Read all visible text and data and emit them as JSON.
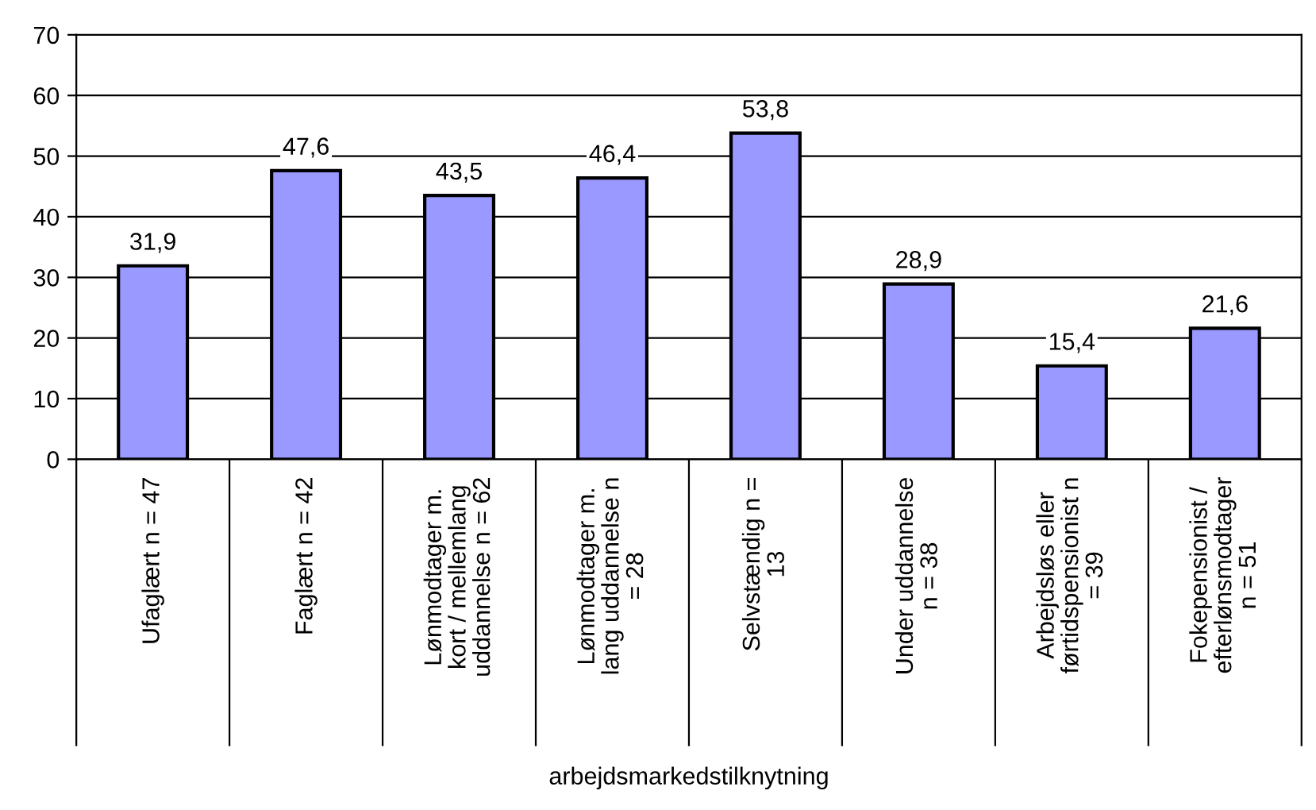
{
  "chart_data": {
    "type": "bar",
    "xlabel": "arbejdsmarkedstilknytning",
    "categories": [
      "Ufaglært n = 47",
      "Faglært n = 42",
      "Lønmodtager m.\nkort / mellemlang\nuddannelse n = 62",
      "Lønmodtager m.\nlang uddannelse n\n= 28",
      "Selvstændig n =\n13",
      "Under uddannelse\nn = 38",
      "Arbejdsløs eller\nførtidspensionist n\n= 39",
      "Fokepensionist /\nefterlønsmodtager\nn = 51"
    ],
    "values": [
      31.9,
      47.6,
      43.5,
      46.4,
      53.8,
      28.9,
      15.4,
      21.6
    ],
    "value_labels": [
      "31,9",
      "47,6",
      "43,5",
      "46,4",
      "53,8",
      "28,9",
      "15,4",
      "21,6"
    ],
    "color": "#9999ff",
    "ylim": [
      0,
      70
    ],
    "yticks": [
      0,
      10,
      20,
      30,
      40,
      50,
      60,
      70
    ],
    "grid": "y"
  }
}
